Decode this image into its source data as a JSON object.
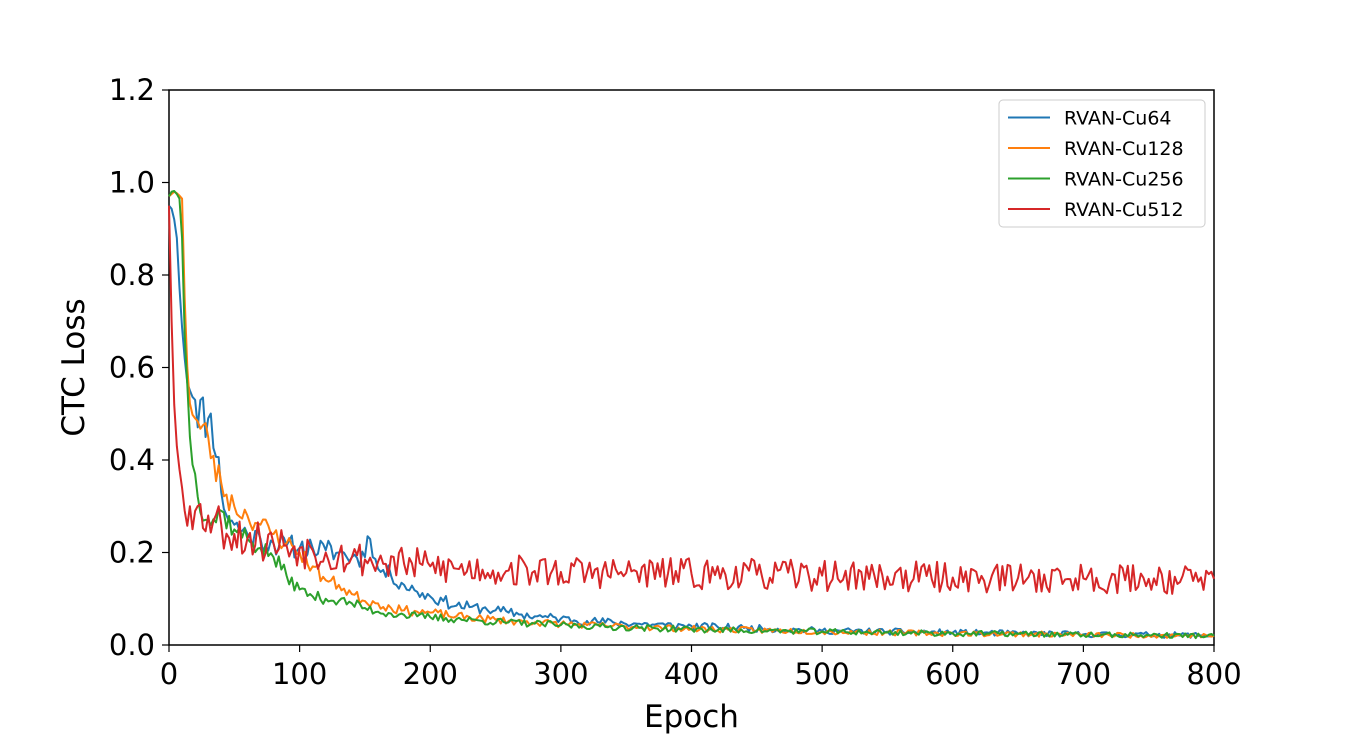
{
  "chart_data": {
    "type": "line",
    "xlabel": "Epoch",
    "ylabel": "CTC Loss",
    "xlim": [
      0,
      800
    ],
    "ylim": [
      0,
      1.2
    ],
    "xticks": [
      0,
      100,
      200,
      300,
      400,
      500,
      600,
      700,
      800
    ],
    "xtick_labels": [
      "0",
      "100",
      "200",
      "300",
      "400",
      "500",
      "600",
      "700",
      "800"
    ],
    "yticks": [
      0,
      0.2,
      0.4,
      0.6,
      0.8,
      1.0,
      1.2
    ],
    "ytick_labels": [
      "0.0",
      "0.2",
      "0.4",
      "0.6",
      "0.8",
      "1.0",
      "1.2"
    ],
    "grid": false,
    "legend_position": "upper-right",
    "series": [
      {
        "name": "RVAN-Cu64",
        "color": "#1f77b4",
        "knots": [
          [
            0,
            0.95
          ],
          [
            3,
            0.94
          ],
          [
            6,
            0.88
          ],
          [
            9,
            0.72
          ],
          [
            12,
            0.62
          ],
          [
            15,
            0.59
          ],
          [
            20,
            0.53
          ],
          [
            25,
            0.5
          ],
          [
            30,
            0.49
          ],
          [
            35,
            0.46
          ],
          [
            40,
            0.33
          ],
          [
            45,
            0.28
          ],
          [
            50,
            0.26
          ],
          [
            60,
            0.24
          ],
          [
            70,
            0.23
          ],
          [
            80,
            0.22
          ],
          [
            90,
            0.215
          ],
          [
            100,
            0.21
          ],
          [
            110,
            0.21
          ],
          [
            120,
            0.205
          ],
          [
            130,
            0.2
          ],
          [
            140,
            0.19
          ],
          [
            150,
            0.19
          ],
          [
            153,
            0.29
          ],
          [
            156,
            0.19
          ],
          [
            160,
            0.165
          ],
          [
            170,
            0.15
          ],
          [
            180,
            0.13
          ],
          [
            190,
            0.115
          ],
          [
            200,
            0.105
          ],
          [
            210,
            0.095
          ],
          [
            220,
            0.085
          ],
          [
            230,
            0.082
          ],
          [
            240,
            0.079
          ],
          [
            250,
            0.075
          ],
          [
            260,
            0.07
          ],
          [
            270,
            0.066
          ],
          [
            280,
            0.062
          ],
          [
            290,
            0.06
          ],
          [
            300,
            0.057
          ],
          [
            320,
            0.052
          ],
          [
            340,
            0.049
          ],
          [
            360,
            0.046
          ],
          [
            380,
            0.043
          ],
          [
            400,
            0.041
          ],
          [
            420,
            0.039
          ],
          [
            440,
            0.037
          ],
          [
            460,
            0.035
          ],
          [
            480,
            0.033
          ],
          [
            500,
            0.031
          ],
          [
            550,
            0.029
          ],
          [
            600,
            0.027
          ],
          [
            650,
            0.025
          ],
          [
            700,
            0.023
          ],
          [
            750,
            0.022
          ],
          [
            800,
            0.021
          ]
        ]
      },
      {
        "name": "RVAN-Cu128",
        "color": "#ff7f0e",
        "knots": [
          [
            0,
            0.97
          ],
          [
            4,
            0.98
          ],
          [
            7,
            0.975
          ],
          [
            10,
            0.965
          ],
          [
            12,
            0.75
          ],
          [
            14,
            0.6
          ],
          [
            17,
            0.52
          ],
          [
            20,
            0.49
          ],
          [
            25,
            0.46
          ],
          [
            30,
            0.45
          ],
          [
            35,
            0.38
          ],
          [
            40,
            0.35
          ],
          [
            45,
            0.32
          ],
          [
            50,
            0.3
          ],
          [
            60,
            0.28
          ],
          [
            70,
            0.26
          ],
          [
            80,
            0.24
          ],
          [
            90,
            0.22
          ],
          [
            100,
            0.2
          ],
          [
            110,
            0.17
          ],
          [
            120,
            0.14
          ],
          [
            130,
            0.13
          ],
          [
            140,
            0.11
          ],
          [
            150,
            0.095
          ],
          [
            160,
            0.09
          ],
          [
            170,
            0.08
          ],
          [
            180,
            0.075
          ],
          [
            190,
            0.072
          ],
          [
            200,
            0.07
          ],
          [
            220,
            0.062
          ],
          [
            240,
            0.057
          ],
          [
            260,
            0.052
          ],
          [
            280,
            0.049
          ],
          [
            300,
            0.046
          ],
          [
            320,
            0.043
          ],
          [
            350,
            0.04
          ],
          [
            380,
            0.037
          ],
          [
            400,
            0.035
          ],
          [
            450,
            0.032
          ],
          [
            500,
            0.029
          ],
          [
            550,
            0.027
          ],
          [
            600,
            0.025
          ],
          [
            650,
            0.024
          ],
          [
            700,
            0.022
          ],
          [
            750,
            0.021
          ],
          [
            800,
            0.02
          ]
        ]
      },
      {
        "name": "RVAN-Cu256",
        "color": "#2ca02c",
        "knots": [
          [
            0,
            0.97
          ],
          [
            3,
            0.985
          ],
          [
            6,
            0.975
          ],
          [
            9,
            0.96
          ],
          [
            11,
            0.8
          ],
          [
            13,
            0.6
          ],
          [
            16,
            0.45
          ],
          [
            18,
            0.39
          ],
          [
            20,
            0.37
          ],
          [
            25,
            0.3
          ],
          [
            30,
            0.27
          ],
          [
            35,
            0.27
          ],
          [
            40,
            0.29
          ],
          [
            45,
            0.27
          ],
          [
            50,
            0.25
          ],
          [
            60,
            0.23
          ],
          [
            70,
            0.21
          ],
          [
            80,
            0.19
          ],
          [
            90,
            0.15
          ],
          [
            100,
            0.12
          ],
          [
            110,
            0.105
          ],
          [
            120,
            0.1
          ],
          [
            130,
            0.095
          ],
          [
            140,
            0.09
          ],
          [
            150,
            0.08
          ],
          [
            160,
            0.072
          ],
          [
            170,
            0.068
          ],
          [
            180,
            0.065
          ],
          [
            190,
            0.062
          ],
          [
            200,
            0.06
          ],
          [
            220,
            0.056
          ],
          [
            240,
            0.052
          ],
          [
            260,
            0.049
          ],
          [
            280,
            0.046
          ],
          [
            300,
            0.043
          ],
          [
            330,
            0.04
          ],
          [
            360,
            0.037
          ],
          [
            400,
            0.034
          ],
          [
            450,
            0.031
          ],
          [
            500,
            0.029
          ],
          [
            550,
            0.027
          ],
          [
            600,
            0.025
          ],
          [
            650,
            0.024
          ],
          [
            700,
            0.022
          ],
          [
            750,
            0.021
          ],
          [
            800,
            0.02
          ]
        ]
      },
      {
        "name": "RVAN-Cu512",
        "color": "#d62728",
        "knots": [
          [
            0,
            0.95
          ],
          [
            2,
            0.7
          ],
          [
            4,
            0.52
          ],
          [
            6,
            0.43
          ],
          [
            8,
            0.38
          ],
          [
            10,
            0.34
          ],
          [
            13,
            0.31
          ],
          [
            16,
            0.3
          ],
          [
            20,
            0.29
          ],
          [
            25,
            0.28
          ],
          [
            30,
            0.28
          ],
          [
            40,
            0.26
          ],
          [
            50,
            0.24
          ],
          [
            60,
            0.23
          ],
          [
            70,
            0.225
          ],
          [
            80,
            0.22
          ],
          [
            90,
            0.215
          ],
          [
            100,
            0.21
          ],
          [
            110,
            0.205
          ],
          [
            120,
            0.2
          ],
          [
            130,
            0.195
          ],
          [
            140,
            0.19
          ],
          [
            150,
            0.185
          ],
          [
            160,
            0.18
          ],
          [
            180,
            0.175
          ],
          [
            200,
            0.17
          ],
          [
            220,
            0.165
          ],
          [
            240,
            0.163
          ],
          [
            260,
            0.161
          ],
          [
            280,
            0.16
          ],
          [
            300,
            0.158
          ],
          [
            350,
            0.156
          ],
          [
            400,
            0.154
          ],
          [
            450,
            0.152
          ],
          [
            500,
            0.15
          ],
          [
            550,
            0.148
          ],
          [
            600,
            0.146
          ],
          [
            650,
            0.145
          ],
          [
            700,
            0.144
          ],
          [
            750,
            0.143
          ],
          [
            800,
            0.143
          ]
        ]
      }
    ]
  }
}
